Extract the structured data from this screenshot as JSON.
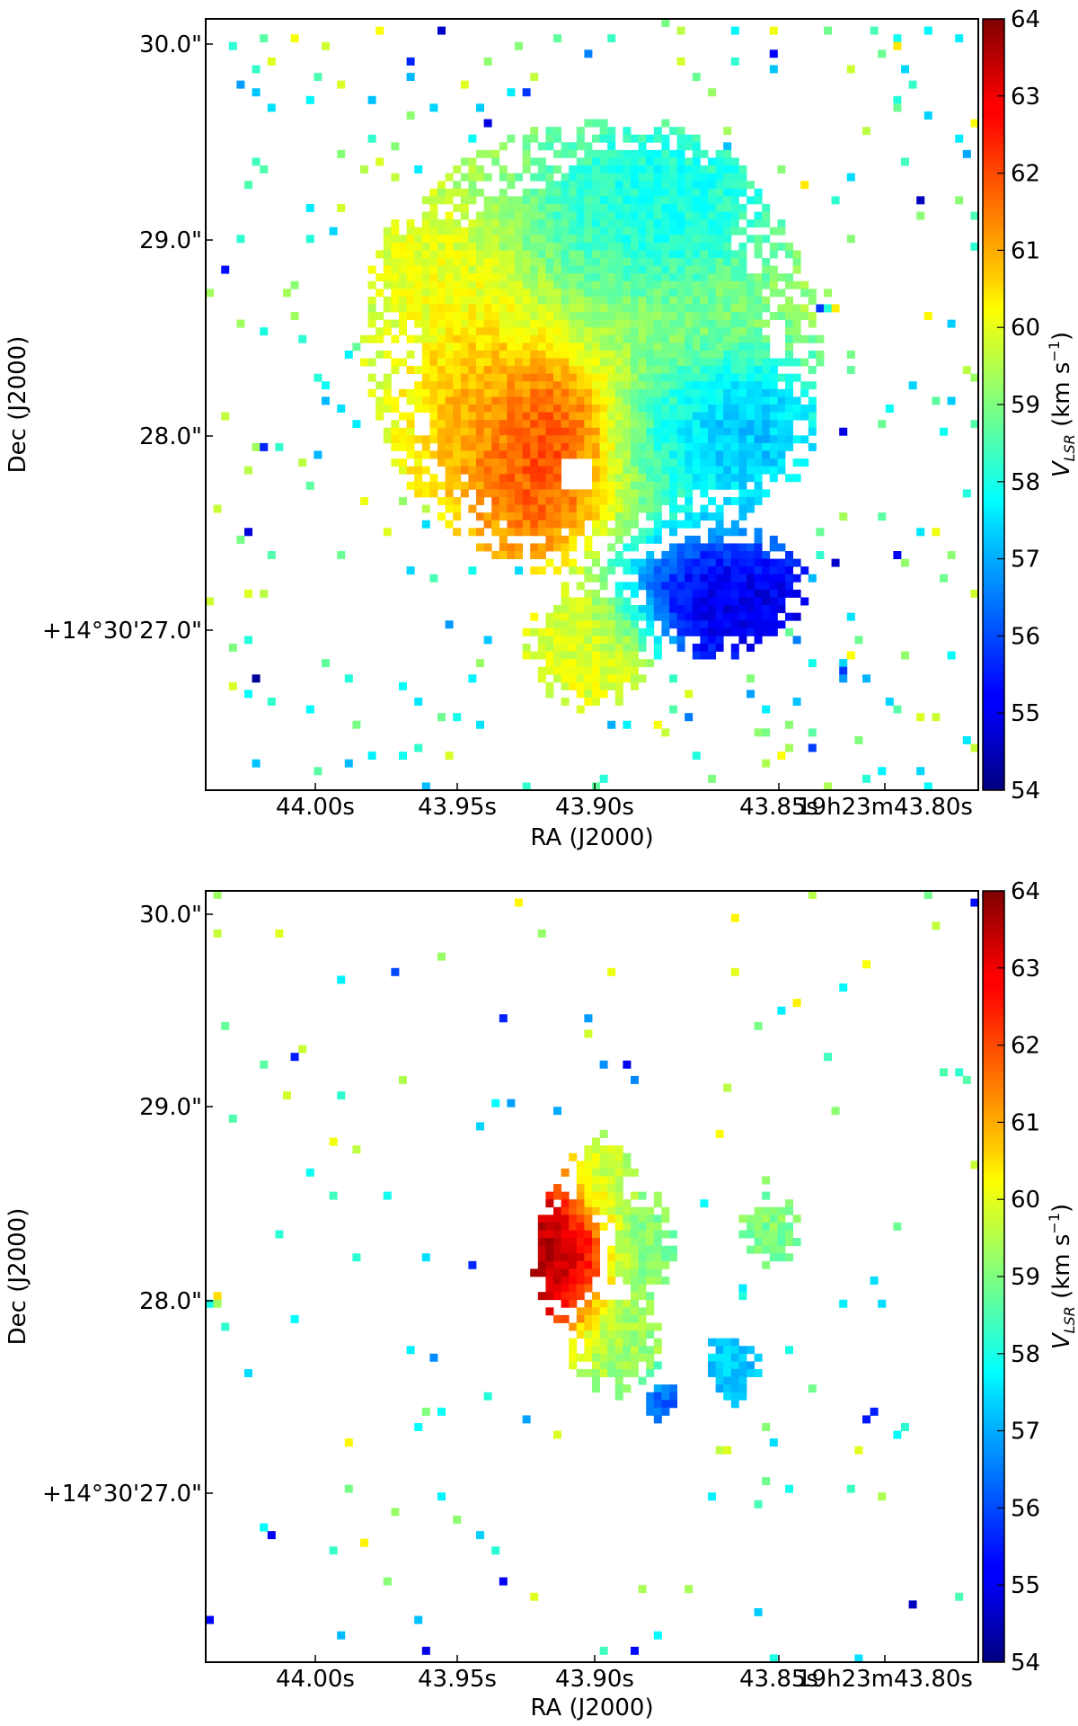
{
  "chart_data": [
    {
      "type": "heatmap",
      "panel": "top",
      "xlabel": "RA (J2000)",
      "ylabel": "Dec (J2000)",
      "x_tick_labels": [
        "44.00s",
        "43.95s",
        "43.90s",
        "43.85s",
        "19h23m43.80s"
      ],
      "y_tick_labels": [
        "30.0\"",
        "29.0\"",
        "28.0\"",
        "+14°30'27.0\""
      ],
      "colorbar": {
        "label_main": "V",
        "label_sub": "LSR",
        "label_unit": "(km s",
        "label_exp": "−1",
        "label_close": ")",
        "min": 54,
        "max": 64,
        "ticks": [
          "64",
          "63",
          "62",
          "61",
          "60",
          "59",
          "58",
          "57",
          "56",
          "55",
          "54"
        ],
        "colormap": "jet"
      },
      "map": {
        "grid_cols": 100,
        "grid_rows": 100,
        "coverage": "extended",
        "blobs": [
          {
            "x": 0.5,
            "y": 0.43,
            "sx": 0.17,
            "sy": 0.17,
            "v": 59.5
          },
          {
            "x": 0.37,
            "y": 0.5,
            "sx": 0.06,
            "sy": 0.08,
            "v": 61.8
          },
          {
            "x": 0.43,
            "y": 0.59,
            "sx": 0.05,
            "sy": 0.06,
            "v": 62.8
          },
          {
            "x": 0.45,
            "y": 0.52,
            "sx": 0.04,
            "sy": 0.05,
            "v": 63.4
          },
          {
            "x": 0.57,
            "y": 0.26,
            "sx": 0.09,
            "sy": 0.07,
            "v": 57.2
          },
          {
            "x": 0.67,
            "y": 0.53,
            "sx": 0.07,
            "sy": 0.06,
            "v": 56.2
          },
          {
            "x": 0.66,
            "y": 0.74,
            "sx": 0.07,
            "sy": 0.05,
            "v": 54.6
          },
          {
            "x": 0.5,
            "y": 0.81,
            "sx": 0.05,
            "sy": 0.05,
            "v": 60.0
          },
          {
            "x": 0.3,
            "y": 0.33,
            "sx": 0.05,
            "sy": 0.05,
            "v": 60.2
          }
        ],
        "hole": {
          "x": 0.48,
          "y": 0.59,
          "r": 0.022
        },
        "value_seed": 7
      }
    },
    {
      "type": "heatmap",
      "panel": "bottom",
      "xlabel": "RA (J2000)",
      "ylabel": "Dec (J2000)",
      "x_tick_labels": [
        "44.00s",
        "43.95s",
        "43.90s",
        "43.85s",
        "19h23m43.80s"
      ],
      "y_tick_labels": [
        "30.0\"",
        "29.0\"",
        "28.0\"",
        "+14°30'27.0\""
      ],
      "colorbar": {
        "label_main": "V",
        "label_sub": "LSR",
        "label_unit": "(km s",
        "label_exp": "−1",
        "label_close": ")",
        "min": 54,
        "max": 64,
        "ticks": [
          "64",
          "63",
          "62",
          "61",
          "60",
          "59",
          "58",
          "57",
          "56",
          "55",
          "54"
        ],
        "colormap": "jet"
      },
      "map": {
        "grid_cols": 100,
        "grid_rows": 100,
        "coverage": "compact",
        "blobs": [
          {
            "x": 0.47,
            "y": 0.47,
            "sx": 0.035,
            "sy": 0.06,
            "v": 63.5
          },
          {
            "x": 0.51,
            "y": 0.38,
            "sx": 0.03,
            "sy": 0.04,
            "v": 59.5
          },
          {
            "x": 0.56,
            "y": 0.46,
            "sx": 0.03,
            "sy": 0.05,
            "v": 59.0
          },
          {
            "x": 0.53,
            "y": 0.58,
            "sx": 0.04,
            "sy": 0.05,
            "v": 59.3
          },
          {
            "x": 0.73,
            "y": 0.44,
            "sx": 0.025,
            "sy": 0.03,
            "v": 59.0
          },
          {
            "x": 0.68,
            "y": 0.62,
            "sx": 0.025,
            "sy": 0.03,
            "v": 57.2
          },
          {
            "x": 0.59,
            "y": 0.66,
            "sx": 0.015,
            "sy": 0.02,
            "v": 56.0
          }
        ],
        "value_seed": 19
      }
    }
  ]
}
